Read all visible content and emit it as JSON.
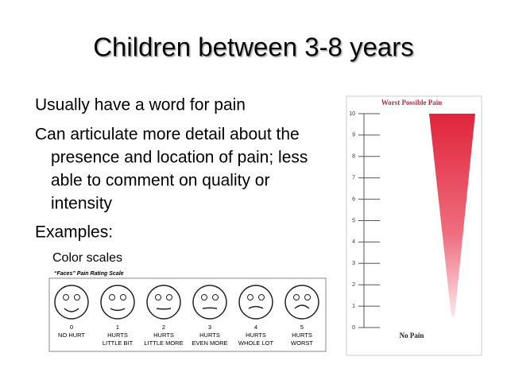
{
  "slide": {
    "title": "Children between 3-8 years",
    "bullets": [
      {
        "lines": [
          "Usually have a word for pain"
        ]
      },
      {
        "lines": [
          "Can articulate more detail about the",
          "presence and location of pain; less",
          "able to comment on quality or",
          "intensity"
        ]
      },
      {
        "lines": [
          "Examples:"
        ]
      }
    ],
    "sub_bullet": "Color scales",
    "faces_scale": {
      "title": "“Faces” Pain Rating Scale",
      "faces": [
        {
          "number": 0,
          "lines": [
            "NO HURT"
          ]
        },
        {
          "number": 1,
          "lines": [
            "HURTS",
            "LITTLE BIT"
          ]
        },
        {
          "number": 2,
          "lines": [
            "HURTS",
            "LITTLE MORE"
          ]
        },
        {
          "number": 3,
          "lines": [
            "HURTS",
            "EVEN MORE"
          ]
        },
        {
          "number": 4,
          "lines": [
            "HURTS",
            "WHOLE LOT"
          ]
        },
        {
          "number": 5,
          "lines": [
            "HURTS",
            "WORST"
          ]
        }
      ]
    },
    "color_scale": {
      "top_label": "Worst Possible Pain",
      "bottom_label": "No Pain",
      "ticks": [
        0,
        1,
        2,
        3,
        4,
        5,
        6,
        7,
        8,
        9,
        10
      ]
    }
  }
}
